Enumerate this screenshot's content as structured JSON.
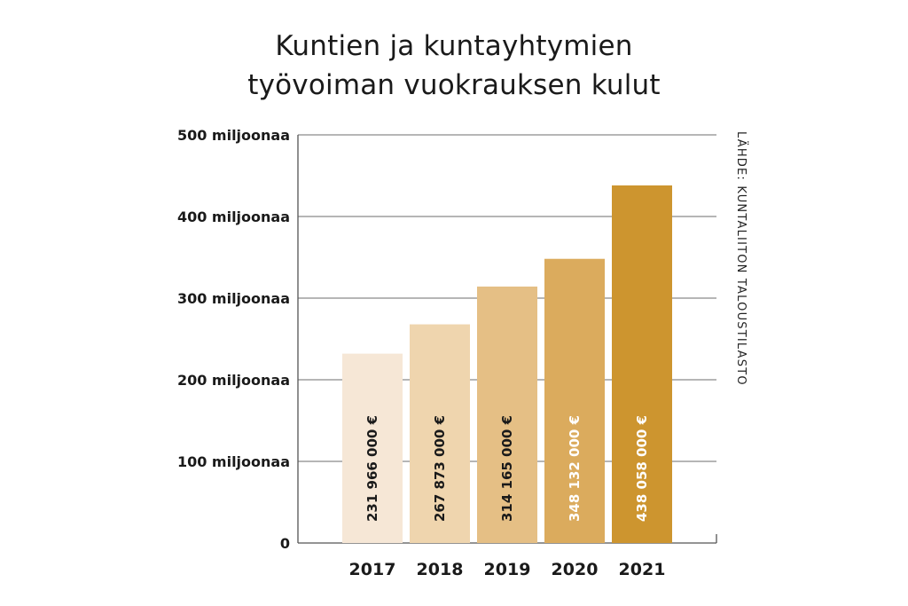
{
  "chart_data": {
    "type": "bar",
    "title_lines": [
      "Kuntien ja kuntayhtymien",
      "työvoiman vuokrauksen kulut"
    ],
    "categories": [
      "2017",
      "2018",
      "2019",
      "2020",
      "2021"
    ],
    "values": [
      231966000,
      267873000,
      314165000,
      348132000,
      438058000
    ],
    "value_labels": [
      "231 966 000 €",
      "267 873 000 €",
      "314 165 000 €",
      "348 132 000 €",
      "438 058 000 €"
    ],
    "y_ticks": [
      {
        "value": 0,
        "label": "0"
      },
      {
        "value": 100000000,
        "label": "100 miljoonaa"
      },
      {
        "value": 200000000,
        "label": "200 miljoonaa"
      },
      {
        "value": 300000000,
        "label": "300 miljoonaa"
      },
      {
        "value": 400000000,
        "label": "400 miljoonaa"
      },
      {
        "value": 500000000,
        "label": "500 miljoonaa"
      }
    ],
    "ylim": [
      0,
      500000000
    ],
    "grid": true,
    "bar_colors": [
      "#f6e7d6",
      "#efd5ae",
      "#e5bf85",
      "#dbab5d",
      "#cd952f"
    ],
    "label_colors": [
      "#1a1a1a",
      "#1a1a1a",
      "#1a1a1a",
      "#ffffff",
      "#ffffff"
    ],
    "source": "LÄHDE: KUNTALIITON TALOUSTILASTO"
  }
}
